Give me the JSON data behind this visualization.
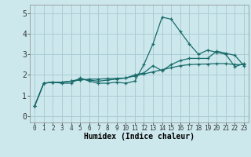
{
  "xlabel": "Humidex (Indice chaleur)",
  "background_color": "#cce8ec",
  "grid_color": "#aaccd4",
  "line_color": "#1a6b6b",
  "x_ticks": [
    0,
    1,
    2,
    3,
    4,
    5,
    6,
    7,
    8,
    9,
    10,
    11,
    12,
    13,
    14,
    15,
    16,
    17,
    18,
    19,
    20,
    21,
    22,
    23
  ],
  "ylim": [
    -0.3,
    5.4
  ],
  "xlim": [
    -0.5,
    23.5
  ],
  "series": [
    [
      0.5,
      1.6,
      1.65,
      1.6,
      1.6,
      1.85,
      1.7,
      1.6,
      1.6,
      1.65,
      1.6,
      1.7,
      2.5,
      3.5,
      4.8,
      4.7,
      4.1,
      3.5,
      3.0,
      3.2,
      3.1,
      3.0,
      2.4,
      2.55
    ],
    [
      0.5,
      1.6,
      1.65,
      1.65,
      1.7,
      1.8,
      1.75,
      1.7,
      1.75,
      1.8,
      1.85,
      2.0,
      2.1,
      2.45,
      2.2,
      2.5,
      2.7,
      2.8,
      2.8,
      2.8,
      3.15,
      3.05,
      2.95,
      2.45
    ],
    [
      0.5,
      1.6,
      1.65,
      1.65,
      1.7,
      1.75,
      1.8,
      1.8,
      1.82,
      1.84,
      1.85,
      1.95,
      2.05,
      2.15,
      2.25,
      2.35,
      2.45,
      2.5,
      2.52,
      2.53,
      2.55,
      2.55,
      2.5,
      2.5
    ]
  ]
}
